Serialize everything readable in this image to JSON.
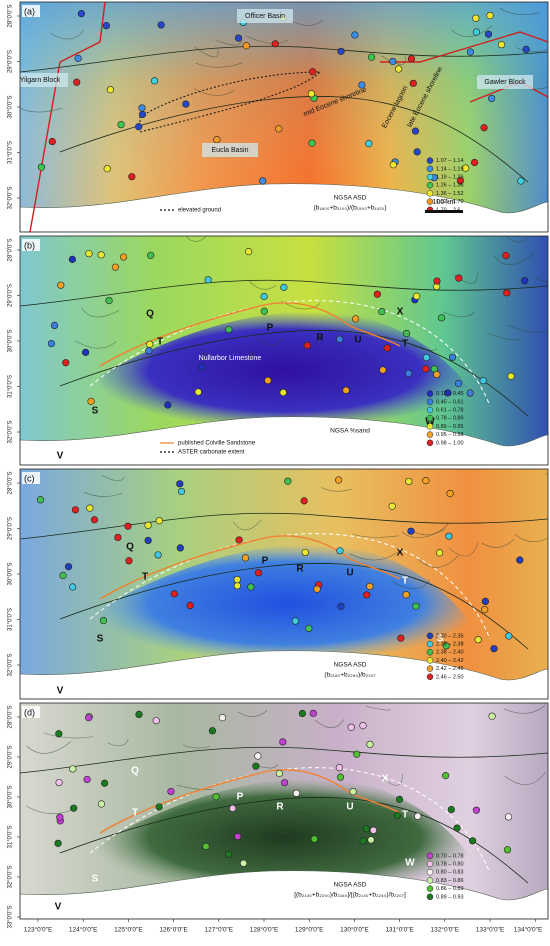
{
  "lat_ticks": [
    "28°0'0\"S",
    "29°0'0\"S",
    "30°0'0\"S",
    "31°0'0\"S",
    "32°0'0\"S",
    "33°0'0\"S"
  ],
  "lon_ticks": [
    "123°0'0\"E",
    "124°0'0\"E",
    "125°0'0\"E",
    "126°0'0\"E",
    "127°0'0\"E",
    "128°0'0\"E",
    "129°0'0\"E",
    "130°0'0\"E",
    "131°0'0\"E",
    "132°0'0\"E",
    "133°0'0\"E",
    "134°0'0\"E"
  ],
  "panels": [
    {
      "label": "(a)",
      "legend_title": [
        "NGSA ASD",
        "(b₁₈₀₀+b₂₁₀₀)/(b₁₉₀₀+b₁₉₂₀)"
      ],
      "classes": [
        {
          "label": "1.07 – 1.14",
          "color": "#2747c8"
        },
        {
          "label": "1.14 – 1.19",
          "color": "#3b8ee8"
        },
        {
          "label": "1.19 – 1.26",
          "color": "#3fd0e0"
        },
        {
          "label": "1.26 – 1.36",
          "color": "#3cc850"
        },
        {
          "label": "1.36 – 1.52",
          "color": "#f0e830"
        },
        {
          "label": "1.52 – 1.70",
          "color": "#f59a20"
        },
        {
          "label": "1.70 – 2.6",
          "color": "#e02020"
        }
      ],
      "labels": [
        "Officer Basin",
        "Yilgarn Block",
        "Gawler Block",
        "Eucla Basin",
        "mid Eocene shoreline",
        "Eocene lagoon",
        "late Eocene shoreline"
      ],
      "line_legend": [
        "elevated ground"
      ],
      "scale_bar": "100 km"
    },
    {
      "label": "(b)",
      "legend_title": [
        "NGSA %sand"
      ],
      "classes": [
        {
          "label": "0.12 – 0.45",
          "color": "#2030c0"
        },
        {
          "label": "0.45 – 0.61",
          "color": "#3a7ee0"
        },
        {
          "label": "0.61 – 0.78",
          "color": "#40c8e0"
        },
        {
          "label": "0.78 – 0.89",
          "color": "#40c050"
        },
        {
          "label": "0.89 – 0.95",
          "color": "#e8e830"
        },
        {
          "label": "0.95 – 0.98",
          "color": "#f5a020"
        },
        {
          "label": "0.98 – 1.00",
          "color": "#e02020"
        }
      ],
      "labels": [
        "Q",
        "X",
        "P",
        "R",
        "U",
        "T",
        "T",
        "S",
        "W",
        "V",
        "Nullarbor Limestone"
      ],
      "line_legend": [
        "published Colville Sandstone",
        "ASTER carbonate extent"
      ]
    },
    {
      "label": "(c)",
      "legend_title": [
        "NGSA ASD",
        "(b₂₁₈₀+b₂₂₈₀)/b₂₂₀₇"
      ],
      "classes": [
        {
          "label": "2.30 – 2.35",
          "color": "#2040c0"
        },
        {
          "label": "2.35 – 2.38",
          "color": "#40c8e0"
        },
        {
          "label": "2.38 – 2.40",
          "color": "#40c050"
        },
        {
          "label": "2.40 – 2.42",
          "color": "#e8e830"
        },
        {
          "label": "2.42 – 2.46",
          "color": "#f5a020"
        },
        {
          "label": "2.46 – 2.50",
          "color": "#e02020"
        }
      ],
      "labels": [
        "Q",
        "X",
        "T",
        "P",
        "R",
        "U",
        "T",
        "S",
        "S",
        "V"
      ]
    },
    {
      "label": "(d)",
      "legend_title": [
        "NGSA ASD",
        "[(b₂₁₄₀+b₂₂₀₀)/b₂₁₆₀]/[(b₂₁₄₀+b₂₂₄₀)/b₂₂₀₇]"
      ],
      "classes": [
        {
          "label": "0.70 – 0.78",
          "color": "#c040d0"
        },
        {
          "label": "0.78 – 0.80",
          "color": "#f0c0e8"
        },
        {
          "label": "0.80 – 0.83",
          "color": "#f8f0f0"
        },
        {
          "label": "0.83 – 0.86",
          "color": "#c8f0a0"
        },
        {
          "label": "0.86 – 0.89",
          "color": "#50c030"
        },
        {
          "label": "0.89 – 0.93",
          "color": "#1a7a20"
        }
      ],
      "labels": [
        "Q",
        "X",
        "P",
        "R",
        "U",
        "T",
        "T",
        "S",
        "W",
        "V"
      ]
    }
  ]
}
